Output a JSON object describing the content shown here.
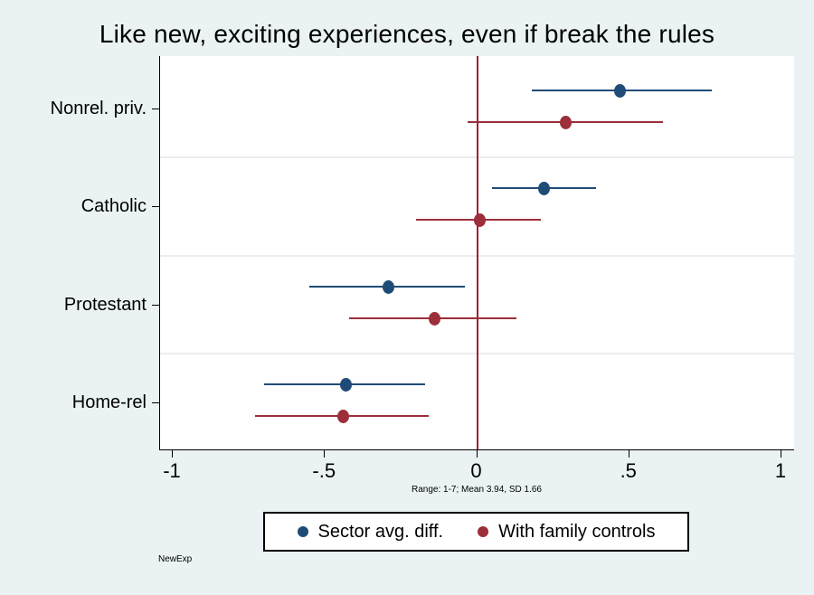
{
  "title": "Like new, exciting experiences, even if break the rules",
  "note": "Range: 1-7; Mean 3.94, SD 1.66",
  "footnote": "NewExp",
  "colors": {
    "background": "#eaf2f3",
    "plot_background": "#ffffff",
    "axis": "#000000",
    "grid": "#e9edee",
    "refline": "#a41e35",
    "series_blue": "#1f4c77",
    "series_red": "#9c2f3a"
  },
  "chart_data": {
    "type": "scatter",
    "subtype": "coefficient-dot-plot-with-ci",
    "title": "Like new, exciting experiences, even if break the rules",
    "categories": [
      "Nonrel. priv.",
      "Catholic",
      "Protestant",
      "Home-rel"
    ],
    "series": [
      {
        "name": "Sector avg. diff.",
        "color": "#1f4c77",
        "values": [
          0.47,
          0.22,
          -0.29,
          -0.43
        ],
        "ci_low": [
          0.18,
          0.05,
          -0.55,
          -0.7
        ],
        "ci_high": [
          0.77,
          0.39,
          -0.04,
          -0.17
        ]
      },
      {
        "name": "With family controls",
        "color": "#9c2f3a",
        "values": [
          0.29,
          0.01,
          -0.14,
          -0.44
        ],
        "ci_low": [
          -0.03,
          -0.2,
          -0.42,
          -0.73
        ],
        "ci_high": [
          0.61,
          0.21,
          0.13,
          -0.16
        ]
      }
    ],
    "xticks": {
      "values": [
        -1,
        -0.5,
        0,
        0.5,
        1
      ],
      "labels": [
        "-1",
        "-.5",
        "0",
        ".5",
        "1"
      ]
    },
    "xlim": [
      -1.04,
      1.04
    ],
    "refline_x": 0,
    "grid": "between-categories",
    "legend_position": "bottom",
    "note": "Range: 1-7; Mean 3.94, SD 1.66"
  }
}
